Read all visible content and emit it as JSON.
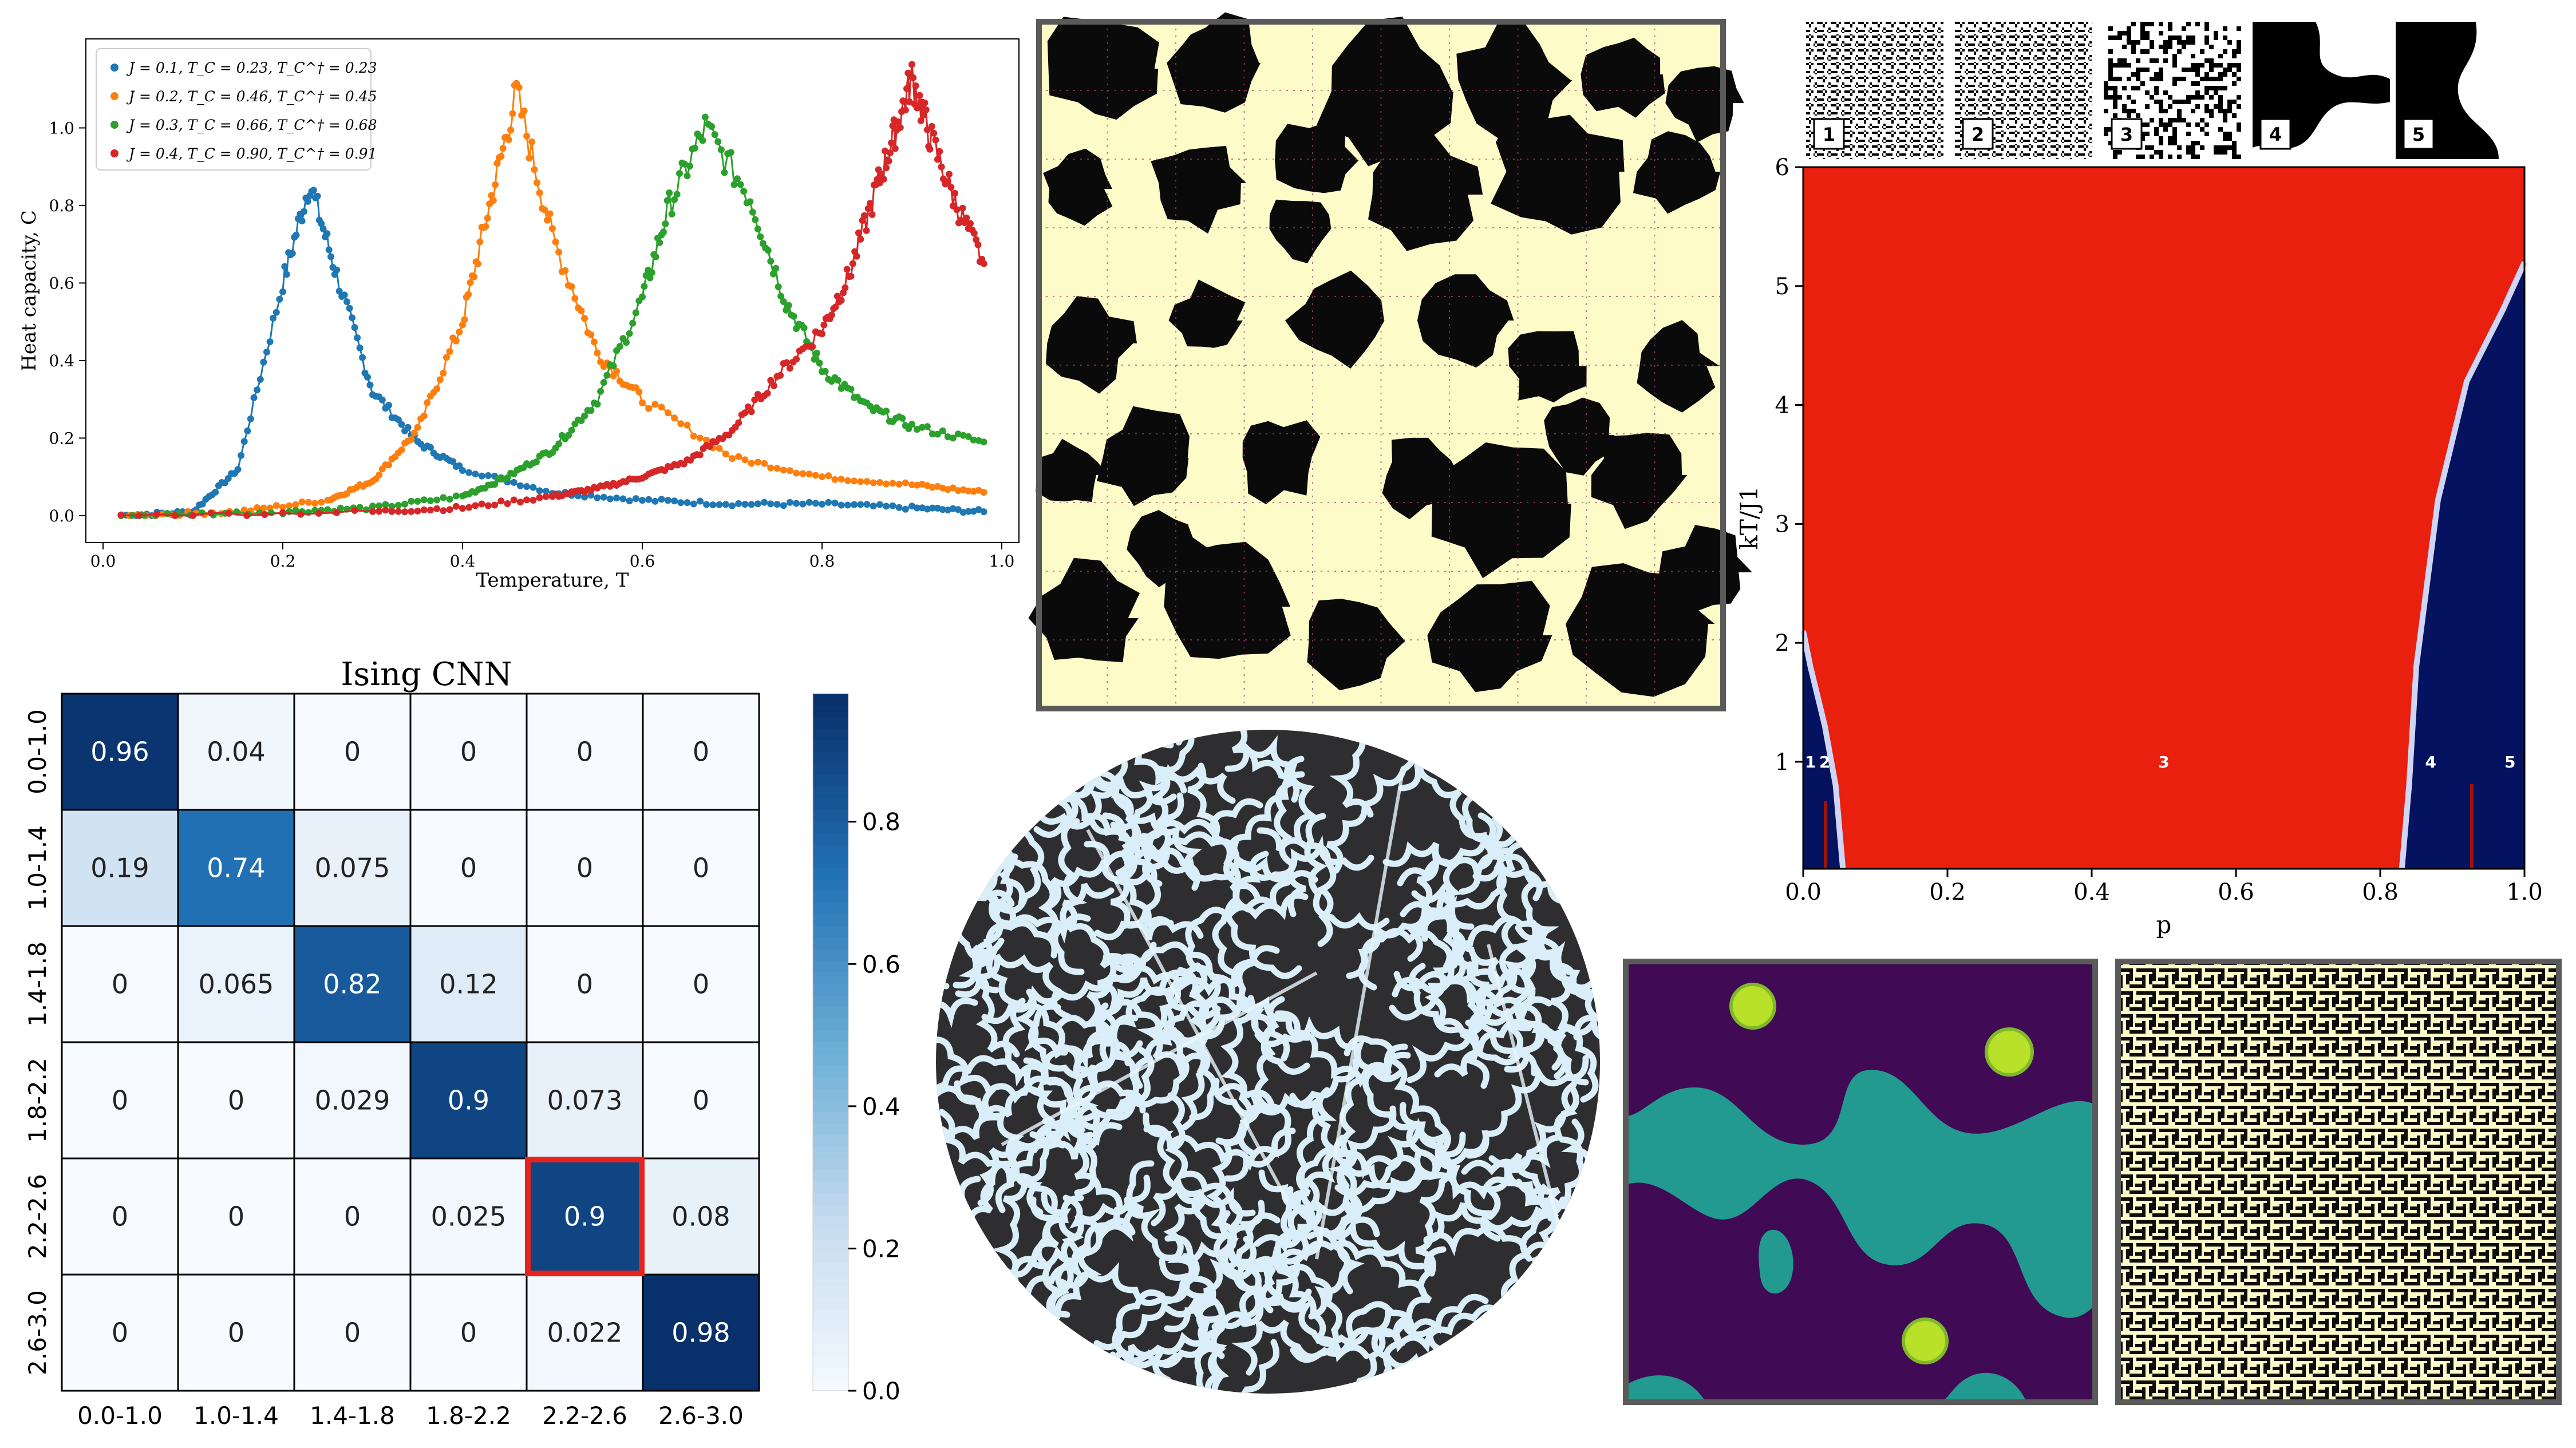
{
  "chart_data": [
    {
      "type": "line",
      "xlabel": "Temperature, T",
      "ylabel": "Heat capacity, C",
      "xlim": [
        0.0,
        1.0
      ],
      "ylim": [
        -0.04,
        1.2
      ],
      "xticks": [
        "0.0",
        "0.2",
        "0.4",
        "0.6",
        "0.8",
        "1.0"
      ],
      "yticks": [
        "0.0",
        "0.2",
        "0.4",
        "0.6",
        "0.8",
        "1.0"
      ],
      "legend_position": "top-left",
      "series": [
        {
          "name": "J = 0.1, T_C = 0.23, T_C^† = 0.23",
          "color": "#1f77b4",
          "peak_x": 0.23,
          "peak_y": 0.86,
          "x": [
            0.02,
            0.1,
            0.15,
            0.2,
            0.23,
            0.26,
            0.3,
            0.35,
            0.4,
            0.5,
            0.6,
            0.7,
            0.8,
            0.9,
            0.98
          ],
          "y": [
            0.0,
            0.01,
            0.12,
            0.6,
            0.86,
            0.62,
            0.32,
            0.19,
            0.12,
            0.06,
            0.04,
            0.03,
            0.03,
            0.02,
            0.01
          ]
        },
        {
          "name": "J = 0.2, T_C = 0.46, T_C^† = 0.45",
          "color": "#ff7f0e",
          "peak_x": 0.46,
          "peak_y": 1.09,
          "x": [
            0.02,
            0.15,
            0.25,
            0.3,
            0.35,
            0.4,
            0.43,
            0.46,
            0.5,
            0.55,
            0.6,
            0.7,
            0.8,
            0.9,
            0.98
          ],
          "y": [
            0.0,
            0.01,
            0.04,
            0.09,
            0.22,
            0.5,
            0.8,
            1.09,
            0.72,
            0.42,
            0.3,
            0.15,
            0.1,
            0.08,
            0.06
          ]
        },
        {
          "name": "J = 0.3, T_C = 0.66, T_C^† = 0.68",
          "color": "#2ca02c",
          "peak_x": 0.67,
          "peak_y": 1.0,
          "x": [
            0.02,
            0.2,
            0.3,
            0.4,
            0.45,
            0.5,
            0.55,
            0.6,
            0.63,
            0.67,
            0.72,
            0.76,
            0.8,
            0.85,
            0.9,
            0.98
          ],
          "y": [
            0.0,
            0.01,
            0.02,
            0.05,
            0.1,
            0.17,
            0.3,
            0.56,
            0.8,
            1.0,
            0.82,
            0.55,
            0.38,
            0.28,
            0.23,
            0.19
          ]
        },
        {
          "name": "J = 0.4, T_C = 0.90, T_C^† = 0.91",
          "color": "#d62728",
          "peak_x": 0.9,
          "peak_y": 1.13,
          "x": [
            0.02,
            0.3,
            0.4,
            0.5,
            0.55,
            0.6,
            0.65,
            0.7,
            0.75,
            0.8,
            0.83,
            0.86,
            0.88,
            0.9,
            0.92,
            0.95,
            0.98
          ],
          "y": [
            0.0,
            0.01,
            0.02,
            0.05,
            0.07,
            0.1,
            0.14,
            0.22,
            0.36,
            0.48,
            0.62,
            0.84,
            0.98,
            1.13,
            0.98,
            0.8,
            0.65
          ]
        }
      ]
    },
    {
      "type": "heatmap",
      "title": "Ising CNN",
      "rows": [
        "0.0-1.0",
        "1.0-1.4",
        "1.4-1.8",
        "1.8-2.2",
        "2.2-2.6",
        "2.6-3.0"
      ],
      "cols": [
        "0.0-1.0",
        "1.0-1.4",
        "1.4-1.8",
        "1.8-2.2",
        "2.2-2.6",
        "2.6-3.0"
      ],
      "values": [
        [
          0.96,
          0.04,
          0,
          0,
          0,
          0
        ],
        [
          0.19,
          0.74,
          0.075,
          0,
          0,
          0
        ],
        [
          0,
          0.065,
          0.82,
          0.12,
          0,
          0
        ],
        [
          0,
          0,
          0.029,
          0.9,
          0.073,
          0
        ],
        [
          0,
          0,
          0,
          0.025,
          0.9,
          0.08
        ],
        [
          0,
          0,
          0,
          0,
          0.022,
          0.98
        ]
      ],
      "labels": [
        [
          "0.96",
          "0.04",
          "0",
          "0",
          "0",
          "0"
        ],
        [
          "0.19",
          "0.74",
          "0.075",
          "0",
          "0",
          "0"
        ],
        [
          "0",
          "0.065",
          "0.82",
          "0.12",
          "0",
          "0"
        ],
        [
          "0",
          "0",
          "0.029",
          "0.9",
          "0.073",
          "0"
        ],
        [
          "0",
          "0",
          "0",
          "0.025",
          "0.9",
          "0.08"
        ],
        [
          "0",
          "0",
          "0",
          "0",
          "0.022",
          "0.98"
        ]
      ],
      "highlight": {
        "row": 4,
        "col": 4,
        "color": "#e8221c"
      },
      "colorbar": {
        "ticks": [
          "0.0",
          "0.2",
          "0.4",
          "0.6",
          "0.8"
        ],
        "range": [
          0.0,
          0.98
        ]
      }
    },
    {
      "type": "heatmap",
      "xlabel": "p",
      "ylabel": "kT/J1",
      "xlim": [
        0.0,
        1.0
      ],
      "ylim": [
        0.1,
        6.0
      ],
      "xticks": [
        "0.0",
        "0.2",
        "0.4",
        "0.6",
        "0.8",
        "1.0"
      ],
      "yticks": [
        "1",
        "2",
        "3",
        "4",
        "5",
        "6"
      ],
      "region_labels": [
        "1",
        "2",
        "3",
        "4",
        "5"
      ],
      "region_label_positions": [
        [
          0.01,
          1.0
        ],
        [
          0.03,
          1.0
        ],
        [
          0.5,
          1.0
        ],
        [
          0.87,
          1.0
        ],
        [
          0.98,
          1.0
        ]
      ],
      "boundary_left": [
        [
          0.0,
          2.1
        ],
        [
          0.01,
          1.8
        ],
        [
          0.03,
          1.3
        ],
        [
          0.045,
          0.8
        ],
        [
          0.055,
          0.1
        ]
      ],
      "boundary_right": [
        [
          1.0,
          5.2
        ],
        [
          0.97,
          4.8
        ],
        [
          0.92,
          4.2
        ],
        [
          0.88,
          3.2
        ],
        [
          0.85,
          1.8
        ],
        [
          0.84,
          0.8
        ],
        [
          0.83,
          0.1
        ]
      ],
      "colors": {
        "ordered": "#05125f",
        "disordered": "#e8200d"
      }
    }
  ],
  "thumbnails": {
    "labels": [
      "1",
      "2",
      "3",
      "4",
      "5"
    ]
  },
  "colors": {
    "lattice_dark": "#0a0a0a",
    "lattice_light": "#fdfbc7",
    "domain_purple": "#400a55",
    "domain_teal": "#229a90",
    "domain_yellow": "#b9e12a",
    "stripe_dark": "#2e2e30",
    "stripe_light": "#d9eef8"
  }
}
